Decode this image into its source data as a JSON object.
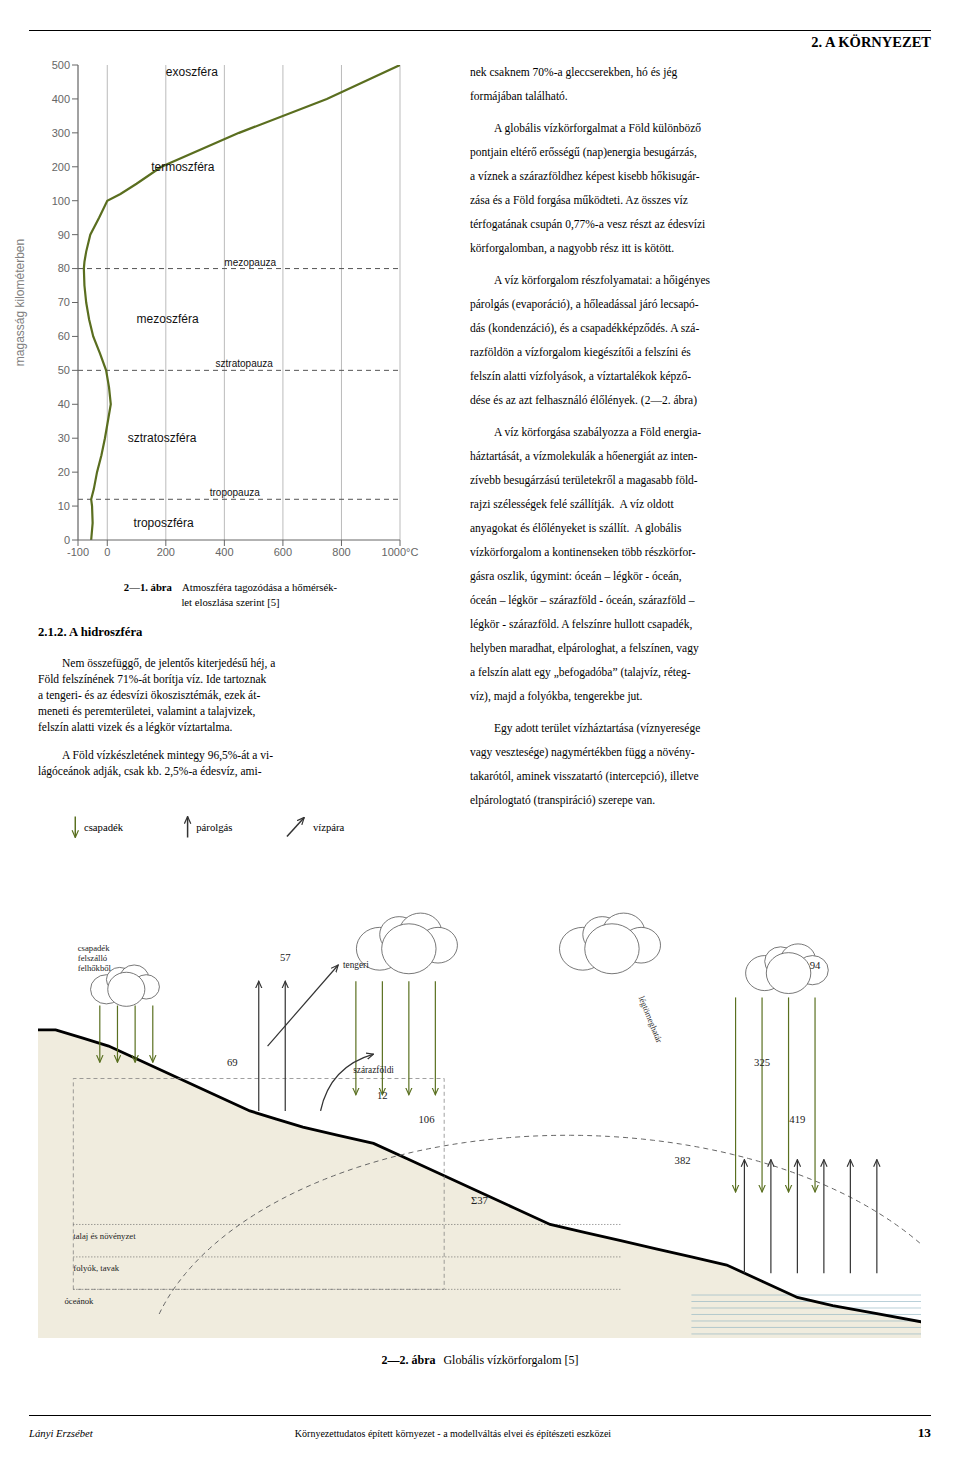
{
  "chart_data": {
    "type": "line",
    "y_label": "magasság kilométerben",
    "x": [
      -55,
      -50,
      -52,
      -55,
      -46,
      -35,
      -20,
      -8,
      2,
      12,
      6,
      -4,
      -25,
      -48,
      -62,
      -72,
      -78,
      -80,
      -78,
      -72,
      -58,
      -28,
      0,
      45,
      100,
      185,
      450,
      750,
      1000
    ],
    "values": [
      0,
      5,
      10,
      12,
      15,
      20,
      25,
      30,
      35,
      40,
      45,
      50,
      55,
      60,
      65,
      70,
      75,
      80,
      82,
      85,
      90,
      95,
      100,
      120,
      150,
      200,
      300,
      400,
      500
    ],
    "color": "#5a6e1f",
    "xlim": [
      -100,
      1000
    ],
    "xticks": [
      -100,
      0,
      200,
      400,
      600,
      800,
      {
        "value": 1000,
        "label": "1000°C"
      }
    ],
    "ylim": [
      0,
      500
    ],
    "yticks": [
      0,
      10,
      20,
      30,
      40,
      50,
      60,
      70,
      80,
      90,
      100,
      200,
      300,
      400,
      500
    ],
    "grid": true,
    "annotations": [
      {
        "text": "mezopauza",
        "x": 400,
        "y": 80,
        "line_style": "dashed"
      },
      {
        "text": "sztratopauza",
        "x": 370,
        "y": 50,
        "line_style": "dashed"
      },
      {
        "text": "tropopauza",
        "x": 350,
        "y": 12,
        "line_style": "dashed"
      },
      {
        "text": "exoszféra",
        "x": 200,
        "y": 480
      },
      {
        "text": "termoszféra",
        "x": 150,
        "y": 200
      },
      {
        "text": "mezoszféra",
        "x": 100,
        "y": 65
      },
      {
        "text": "sztratoszféra",
        "x": 70,
        "y": 30
      },
      {
        "text": "troposzféra",
        "x": 90,
        "y": 5
      }
    ]
  },
  "page": {
    "header": "2. A KÖRNYEZET",
    "page_number": "13",
    "footer_left": "Lányi Erzsébet",
    "footer_center": "Környezettudatos épített környezet - a modellváltás elvei és építészeti eszközei",
    "caption1": [
      "2—1. ábra",
      "Atmoszféra tagozódása a hőmérsék-",
      "let eloszlása szerint [5]"
    ],
    "section_title": "2.1.2. A hidroszféra",
    "left_paragraphs": [
      [
        "Nem összefüggő, de jelentős kiterjedésű héj, a",
        "Föld felszínének 71%-át borítja víz. Ide tartoznak",
        "a tengeri- és az édesvízi ökoszisztémák, ezek át-",
        "meneti és peremterületei, valamint a talajvizek,",
        "felszín alatti vizek és a légkör víztartalma."
      ],
      [
        "A Föld vízkészletének mintegy 96,5%-át a vi-",
        "lágóceánok adják, csak kb. 2,5%-a édesvíz, ami-"
      ]
    ],
    "right_paragraphs": [
      [
        "nek csaknem 70%-a gleccserekben, hó és jég",
        "formájában található."
      ],
      [
        "A globális vízkörforgalmat a Föld különböző",
        "pontjain eltérő erősségű (nap)energia besugárzás,",
        "a víznek a szárazföldhez képest kisebb hőkisugár-",
        "zása és a Föld forgása működteti. Az összes víz",
        "térfogatának csupán 0,77%-a vesz részt az édesvízi",
        "körforgalomban, a nagyobb rész itt is kötött."
      ],
      [
        "A víz körforgalom részfolyamatai: a hőigényes",
        "párolgás (evaporáció), a hőleadással járó lecsapó-",
        "dás (kondenzáció), és a csapadékképződés. A szá-",
        "razföldön a vízforgalom kiegészítői a felszíni és",
        "felszín alatti vízfolyások, a víztartalékok képző-",
        "dése és az azt felhasználó élőlények. (2—2. ábra)"
      ],
      [
        "A víz körforgása szabályozza a Föld energia-",
        "háztartását, a vízmolekulák a hőenergiát az inten-",
        "zívebb besugárzású területekről a magasabb föld-",
        "rajzi szélességek felé szállítják.  A víz oldott",
        "anyagokat és élőlényeket is szállít.  A globális",
        "vízkörforgalom a kontinenseken több részkörfor-",
        "gásra oszlik, úgymint: óceán – légkör - óceán,",
        "óceán – légkör – szárazföld - óceán, szárazföld –",
        "légkör - szárazföld. A felszínre hullott csapadék,",
        "helyben maradhat, elpárologhat, a felszínen, vagy",
        "a felszín alatt egy „befogadóba” (talajvíz, réteg-",
        "víz), majd a folyókba, tengerekbe jut."
      ],
      [
        "Egy adott terület vízháztartása (víznyeresége",
        "vagy vesztesége) nagymértékben függ a növény-",
        "takarótól, aminek visszatartó (intercepció), illetve",
        "elpárologtató (transpiráció) szerepe van."
      ]
    ],
    "legend_items": [
      "csapadék",
      "párolgás",
      "vízpára"
    ],
    "diagram": {
      "cloud_label": [
        "csapadék",
        "felszálló",
        "felhőkből"
      ],
      "layers": [
        "talaj és növényzet",
        "folyók, tavak",
        "óceánok"
      ],
      "air_mass_boundary": "légtömeghatár",
      "labels": [
        57,
        "szárazföldi",
        12,
        69,
        106,
        94,
        325,
        419,
        382,
        "Σ37",
        "tengeri"
      ]
    },
    "caption2": [
      "2—2. ábra",
      "Globális vízkörforgalom [5]"
    ]
  }
}
